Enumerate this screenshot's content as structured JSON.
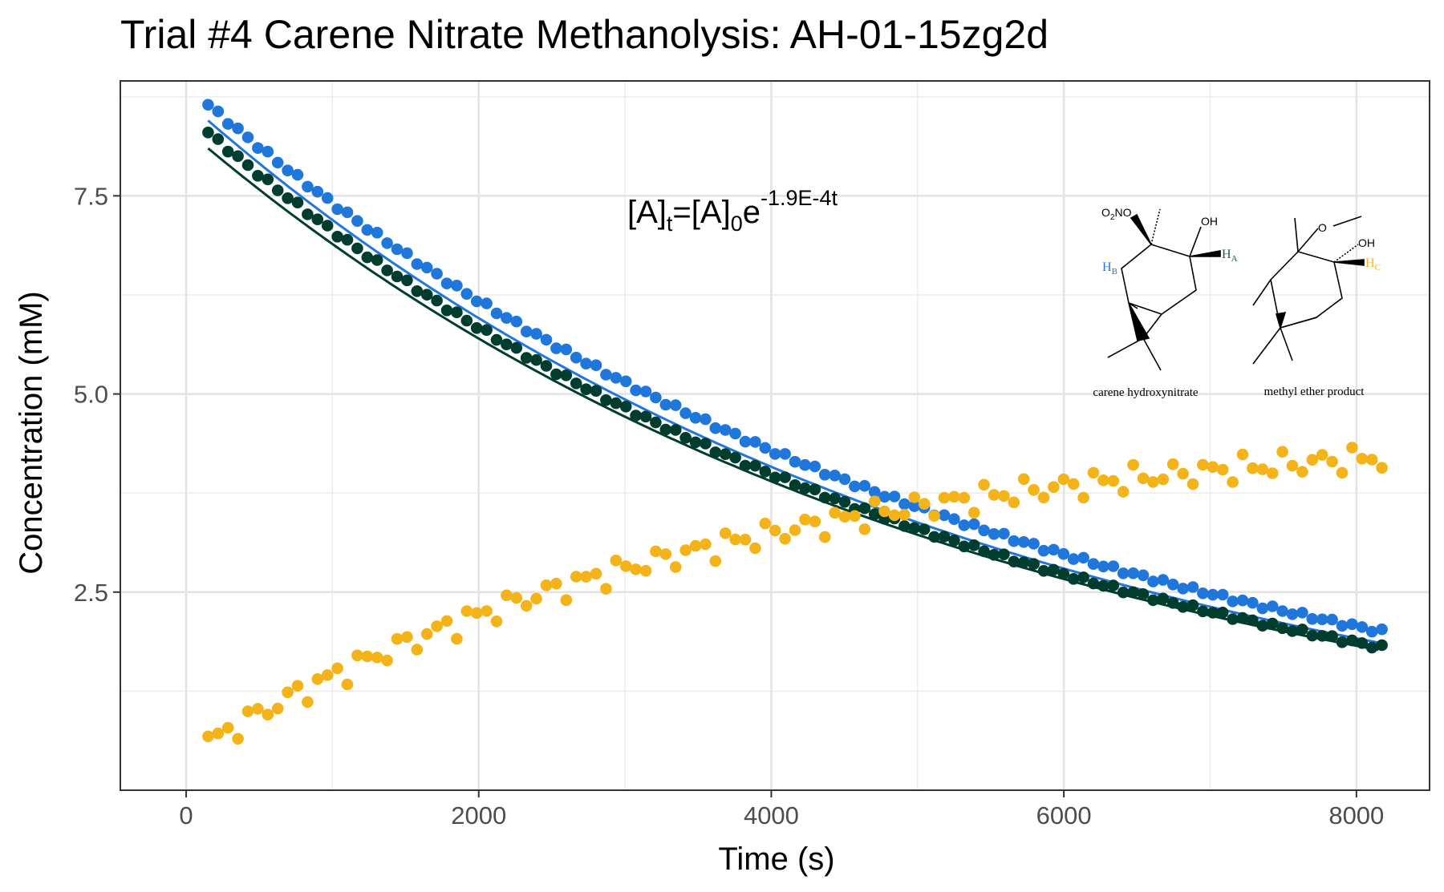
{
  "chart_data": {
    "type": "scatter",
    "title": "Trial #4 Carene Nitrate Methanolysis: AH-01-15zg2d",
    "xlabel": "Time (s)",
    "ylabel": "Concentration (mM)",
    "xlim": [
      -450,
      8500
    ],
    "ylim": [
      0,
      8.95
    ],
    "x_ticks": [
      0,
      2000,
      4000,
      6000,
      8000
    ],
    "x_tick_labels": [
      "0",
      "2000",
      "4000",
      "6000",
      "8000"
    ],
    "y_ticks": [
      2.5,
      5.0,
      7.5
    ],
    "y_tick_labels": [
      "2.5",
      "5.0",
      "7.5"
    ],
    "grid": true,
    "series": [
      {
        "color": "#1f77dc",
        "x_start": 150,
        "x_step": 68,
        "x_end": 8180,
        "y_start": 8.65,
        "y_end": 2.0,
        "fit": {
          "x": [
            150,
            8180
          ],
          "A0": 8.45,
          "k": 0.000189,
          "x0": 150
        }
      },
      {
        "color": "#003d2e",
        "x_start": 150,
        "x_step": 68,
        "x_end": 8180,
        "y_start": 8.3,
        "y_end": 1.8,
        "fit": {
          "x": [
            150,
            8180
          ],
          "A0": 8.1,
          "k": 0.00019,
          "x0": 150
        }
      },
      {
        "color": "#f5b31a",
        "x_start": 150,
        "x_step": 68,
        "x_end": 8180,
        "y_start": 0.6,
        "y_end": 4.2
      }
    ],
    "annotation": {
      "base": "[A]",
      "sub1": "t",
      "mid": "=[A]",
      "sub2": "0",
      "e": "e",
      "sup": "-1.9E-4t"
    },
    "molecules": {
      "left_label": "carene hydroxynitrate",
      "right_label": "methyl ether product",
      "o2no": "O",
      "o2no_sub": "2",
      "o2no_end": "NO",
      "oh1": "OH",
      "oh2": "OH",
      "ether_o": "O",
      "ha": "H",
      "ha_sub": "A",
      "hb": "H",
      "hb_sub": "B",
      "hc": "H",
      "hc_sub": "C",
      "colors": {
        "hb": "#1f77dc",
        "ha": "#1a5c4a",
        "hc": "#f5b31a"
      }
    }
  }
}
